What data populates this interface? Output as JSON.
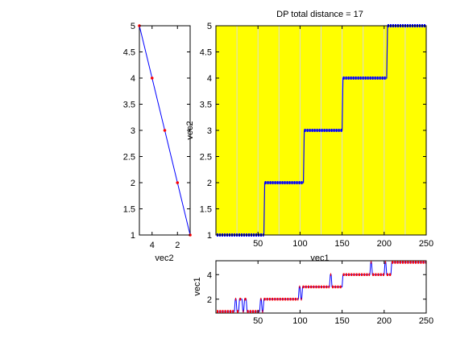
{
  "figure": {
    "background": "#ffffff",
    "highlight_color": "#ffff00",
    "path_line_color": "#0000ff",
    "point_color": "#ff0000",
    "grid_color": "#d9d9d9"
  },
  "chart_data": [
    {
      "id": "left",
      "type": "line",
      "title": "",
      "xlabel": "vec2",
      "ylabel": "",
      "xlim": [
        5,
        1
      ],
      "ylim": [
        1,
        5
      ],
      "x_reversed": true,
      "xticks": [
        4,
        2
      ],
      "yticks": [
        1,
        1.5,
        2,
        2.5,
        3,
        3.5,
        4,
        4.5,
        5
      ],
      "ytick_labels": [
        "1",
        "1.5",
        "2",
        "2.5",
        "3",
        "3.5",
        "4",
        "4.5",
        "5"
      ],
      "xtick_labels": [
        "4",
        "2"
      ],
      "grid": false,
      "series": [
        {
          "x": [
            5,
            4,
            3,
            2,
            1
          ],
          "y": [
            5,
            4,
            3,
            2,
            1
          ],
          "line_color": "#0000ff",
          "marker_color": "#ff0000"
        }
      ]
    },
    {
      "id": "main",
      "type": "line",
      "title": "DP total distance = 17",
      "xlabel": "vec1",
      "ylabel": "vec2",
      "xlim": [
        0,
        250
      ],
      "ylim": [
        1,
        5
      ],
      "xticks": [
        50,
        100,
        150,
        200,
        250
      ],
      "xtick_labels": [
        "50",
        "100",
        "150",
        "200",
        "250"
      ],
      "yticks": [
        1,
        1.5,
        2,
        2.5,
        3,
        3.5,
        4,
        4.5,
        5
      ],
      "ytick_labels": [
        "1",
        "1.5",
        "2",
        "2.5",
        "3",
        "3.5",
        "4",
        "4.5",
        "5"
      ],
      "grid": true,
      "background": "#ffff00",
      "step_path": [
        {
          "x": [
            1,
            57
          ],
          "y": 1
        },
        {
          "x": [
            58,
            104
          ],
          "y": 2
        },
        {
          "x": [
            105,
            150
          ],
          "y": 3
        },
        {
          "x": [
            151,
            203
          ],
          "y": 4
        },
        {
          "x": [
            204,
            250
          ],
          "y": 5
        }
      ],
      "series": [
        {
          "x": [
            1,
            57,
            58,
            104,
            105,
            150,
            151,
            203,
            204,
            250
          ],
          "y": [
            1,
            1,
            2,
            2,
            3,
            3,
            4,
            4,
            5,
            5
          ],
          "line_color": "#0000ff"
        }
      ]
    },
    {
      "id": "bottom",
      "type": "line",
      "title": "",
      "xlabel": "",
      "ylabel": "vec1",
      "xlim": [
        0,
        250
      ],
      "ylim": [
        1,
        5
      ],
      "xticks": [
        50,
        100,
        150,
        200,
        250
      ],
      "xtick_labels": [
        "50",
        "100",
        "150",
        "200",
        "250"
      ],
      "yticks": [
        2,
        4
      ],
      "ytick_labels": [
        "2",
        "4"
      ],
      "grid": false,
      "series": [
        {
          "name": "",
          "line_color": "#0000ff",
          "marker_color": "#ff0000",
          "segments": [
            {
              "x": [
                1,
                22
              ],
              "y": 1
            },
            {
              "x": [
                23,
                24
              ],
              "y": 2
            },
            {
              "x": [
                25,
                27
              ],
              "y": 1
            },
            {
              "x": [
                28,
                31
              ],
              "y": 2
            },
            {
              "x": [
                32,
                33
              ],
              "y": 1
            },
            {
              "x": [
                34,
                36
              ],
              "y": 2
            },
            {
              "x": [
                37,
                52
              ],
              "y": 1
            },
            {
              "x": [
                53,
                54
              ],
              "y": 2
            },
            {
              "x": [
                55,
                56
              ],
              "y": 1
            },
            {
              "x": [
                57,
                98
              ],
              "y": 2
            },
            {
              "x": [
                99,
                100
              ],
              "y": 3
            },
            {
              "x": [
                101,
                102
              ],
              "y": 2
            },
            {
              "x": [
                103,
                135
              ],
              "y": 3
            },
            {
              "x": [
                136,
                137
              ],
              "y": 4
            },
            {
              "x": [
                138,
                150
              ],
              "y": 3
            },
            {
              "x": [
                151,
                183
              ],
              "y": 4
            },
            {
              "x": [
                184,
                185
              ],
              "y": 5
            },
            {
              "x": [
                186,
                200
              ],
              "y": 4
            },
            {
              "x": [
                201,
                202
              ],
              "y": 5
            },
            {
              "x": [
                203,
                208
              ],
              "y": 4
            },
            {
              "x": [
                209,
                250
              ],
              "y": 5
            }
          ]
        }
      ]
    }
  ]
}
